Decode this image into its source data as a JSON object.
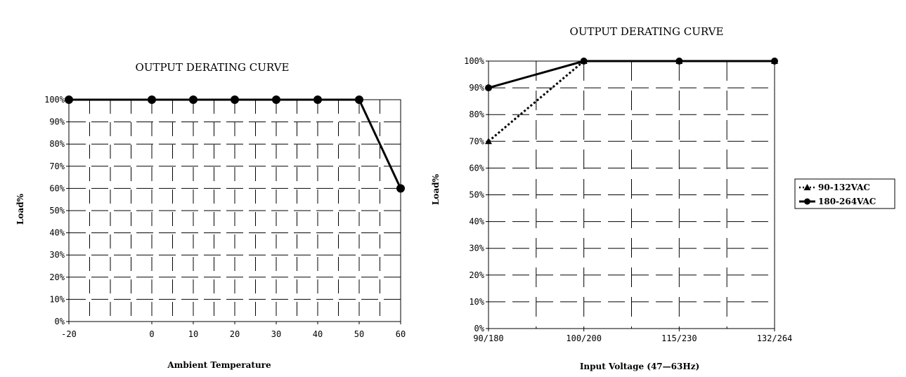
{
  "chart_data": [
    {
      "type": "line",
      "title": "OUTPUT DERATING CURVE",
      "xlabel": "Ambient Temperature",
      "ylabel": "Load%",
      "x_ticks": [
        "-20",
        "0",
        "10",
        "20",
        "30",
        "40",
        "50",
        "60"
      ],
      "y_ticks": [
        "0%",
        "10%",
        "20%",
        "30%",
        "40%",
        "50%",
        "60%",
        "70%",
        "80%",
        "90%",
        "100%"
      ],
      "xlim": [
        -20,
        60
      ],
      "ylim": [
        0,
        100
      ],
      "grid": true,
      "series": [
        {
          "points": [
            [
              -20,
              100
            ],
            [
              0,
              100
            ],
            [
              10,
              100
            ],
            [
              20,
              100
            ],
            [
              30,
              100
            ],
            [
              40,
              100
            ],
            [
              50,
              100
            ],
            [
              60,
              60
            ]
          ],
          "color": "#000000",
          "marker": "circle",
          "line": "solid"
        }
      ]
    },
    {
      "type": "line",
      "title": "OUTPUT DERATING CURVE",
      "xlabel": "Input Voltage (47—63Hz)",
      "ylabel": "Load%",
      "categories": [
        "90/180",
        "100/200",
        "115/230",
        "132/264"
      ],
      "y_ticks": [
        "0%",
        "10%",
        "20%",
        "30%",
        "40%",
        "50%",
        "60%",
        "70%",
        "80%",
        "90%",
        "100%"
      ],
      "ylim": [
        0,
        100
      ],
      "grid": true,
      "legend_position": "right",
      "series": [
        {
          "name": "90-132VAC",
          "values": [
            70,
            100,
            100,
            100
          ],
          "color": "#000000",
          "marker": "triangle",
          "line": "dotted"
        },
        {
          "name": "180-264VAC",
          "values": [
            90,
            100,
            100,
            100
          ],
          "color": "#000000",
          "marker": "circle",
          "line": "solid"
        }
      ]
    }
  ]
}
